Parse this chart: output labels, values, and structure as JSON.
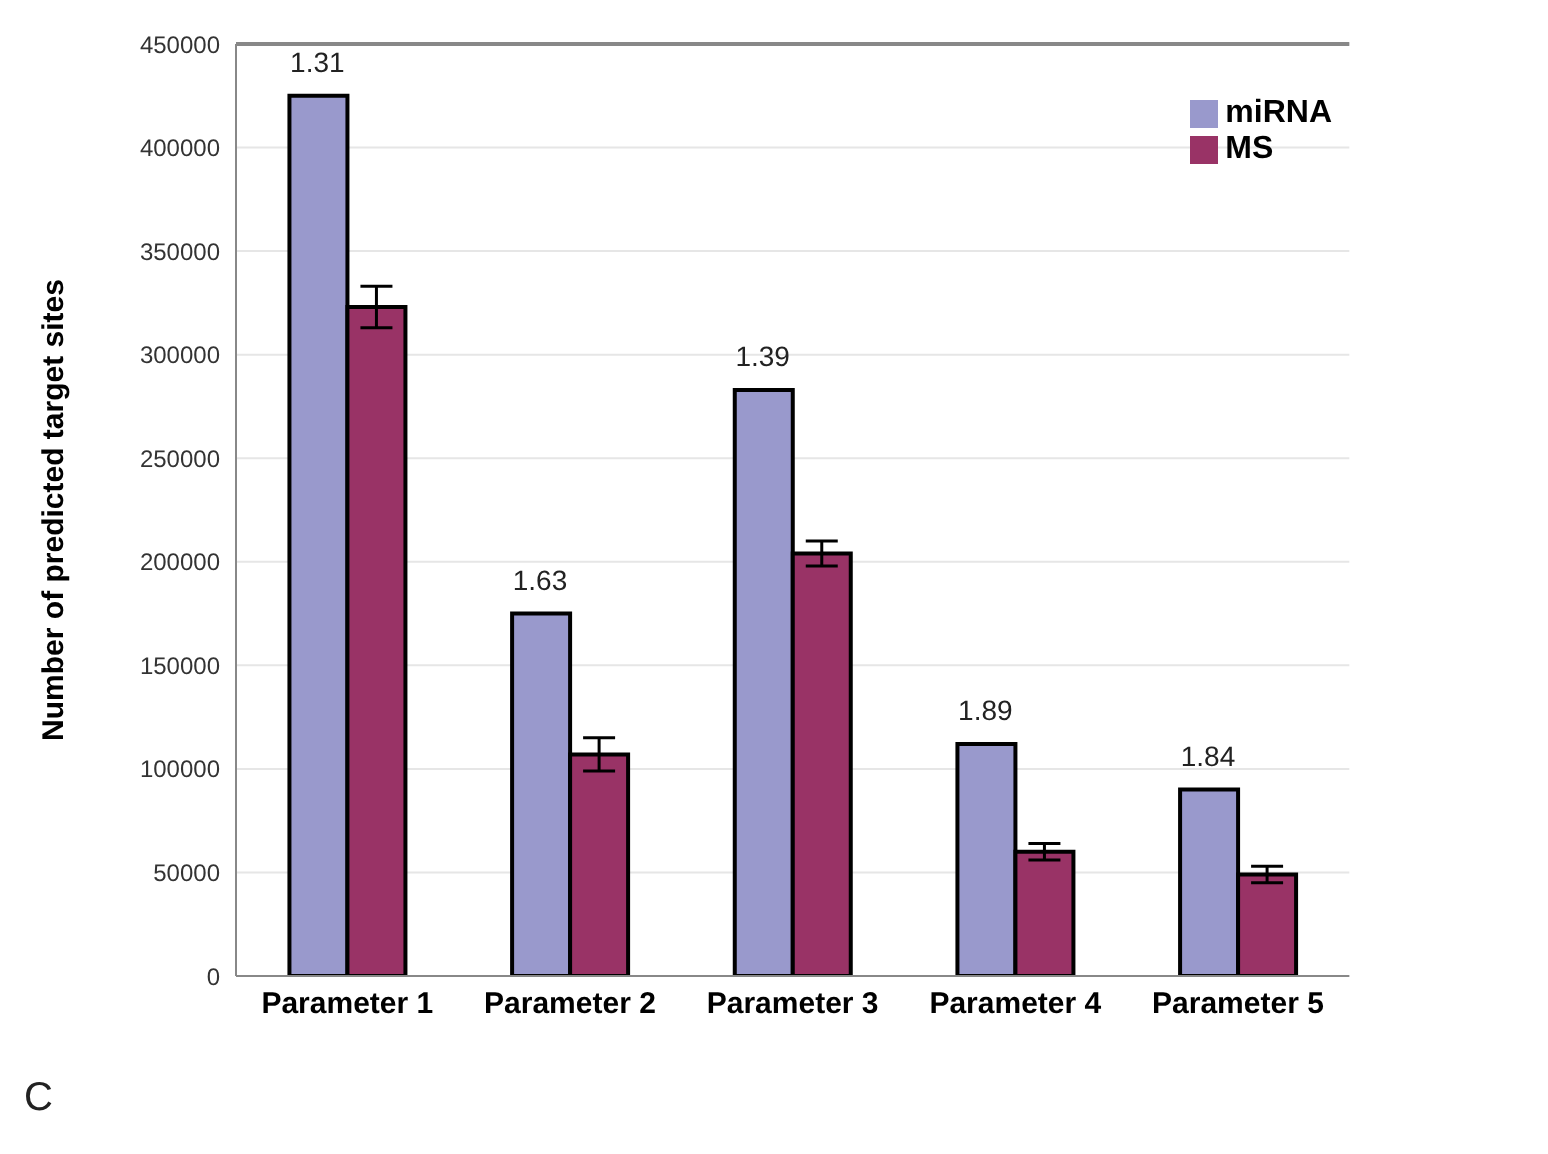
{
  "chart_data": {
    "type": "bar",
    "ylabel": "Number of predicted target sites",
    "categories": [
      "Parameter 1",
      "Parameter 2",
      "Parameter 3",
      "Parameter 4",
      "Parameter 5"
    ],
    "series": [
      {
        "name": "miRNA",
        "color": "#9999cc",
        "values": [
          425000,
          175000,
          283000,
          112000,
          90000
        ]
      },
      {
        "name": "MS",
        "color": "#993366",
        "values": [
          323000,
          107000,
          204000,
          60000,
          49000
        ],
        "errors": [
          10000,
          8000,
          6000,
          4000,
          4000
        ]
      }
    ],
    "ylim": [
      0,
      450000
    ],
    "yticks": [
      0,
      50000,
      100000,
      150000,
      200000,
      250000,
      300000,
      350000,
      400000,
      450000
    ],
    "grid": "y",
    "legend": "top right",
    "annotations": [
      {
        "text": "1.31",
        "x": "Parameter 1",
        "y": 425000
      },
      {
        "text": "1.63",
        "x": "Parameter 2",
        "y": 175000
      },
      {
        "text": "1.39",
        "x": "Parameter 3",
        "y": 283000
      },
      {
        "text": "1.89",
        "x": "Parameter 4",
        "y": 112000
      },
      {
        "text": "1.84",
        "x": "Parameter 5",
        "y": 90000
      },
      "C"
    ]
  }
}
